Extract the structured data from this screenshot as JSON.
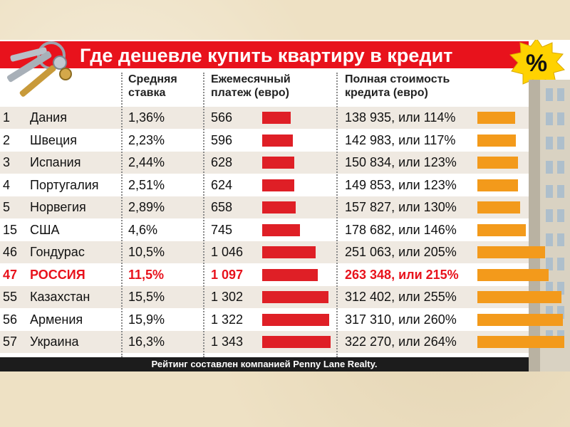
{
  "title": "Где дешевле купить квартиру в кредит",
  "badge": "%",
  "footer": "Рейтинг составлен компанией Penny Lane Realty.",
  "colors": {
    "title_bar": "#e8121c",
    "payment_bar": "#df1f26",
    "total_bar": "#f39a1b",
    "highlight_text": "#e8121c",
    "badge": "#ffd200"
  },
  "chart_data": {
    "type": "table",
    "columns": [
      "Средняя\nставка",
      "Ежемесячный\nплатеж (евро)",
      "Полная стоимость\nкредита (евро)"
    ],
    "highlight_row": 7,
    "rows": [
      {
        "rank": "1",
        "country": "Дания",
        "rate": "1,36%",
        "payment": "566",
        "payment_value": 566,
        "total": "138 935, или 114%",
        "total_value": 138935,
        "total_pct": 114
      },
      {
        "rank": "2",
        "country": "Швеция",
        "rate": "2,23%",
        "payment": "596",
        "payment_value": 596,
        "total": "142 983, или 117%",
        "total_value": 142983,
        "total_pct": 117
      },
      {
        "rank": "3",
        "country": "Испания",
        "rate": "2,44%",
        "payment": "628",
        "payment_value": 628,
        "total": "150 834, или 123%",
        "total_value": 150834,
        "total_pct": 123
      },
      {
        "rank": "4",
        "country": "Португалия",
        "rate": "2,51%",
        "payment": "624",
        "payment_value": 624,
        "total": "149 853, или 123%",
        "total_value": 149853,
        "total_pct": 123
      },
      {
        "rank": "5",
        "country": "Норвегия",
        "rate": "2,89%",
        "payment": "658",
        "payment_value": 658,
        "total": "157 827, или 130%",
        "total_value": 157827,
        "total_pct": 130
      },
      {
        "rank": "15",
        "country": "США",
        "rate": "4,6%",
        "payment": "745",
        "payment_value": 745,
        "total": "178 682, или 146%",
        "total_value": 178682,
        "total_pct": 146
      },
      {
        "rank": "46",
        "country": "Гондурас",
        "rate": "10,5%",
        "payment": "1 046",
        "payment_value": 1046,
        "total": "251 063, или 205%",
        "total_value": 251063,
        "total_pct": 205
      },
      {
        "rank": "47",
        "country": "РОССИЯ",
        "rate": "11,5%",
        "payment": "1 097",
        "payment_value": 1097,
        "total": "263 348, или 215%",
        "total_value": 263348,
        "total_pct": 215
      },
      {
        "rank": "55",
        "country": "Казахстан",
        "rate": "15,5%",
        "payment": "1 302",
        "payment_value": 1302,
        "total": "312 402, или 255%",
        "total_value": 312402,
        "total_pct": 255
      },
      {
        "rank": "56",
        "country": "Армения",
        "rate": "15,9%",
        "payment": "1 322",
        "payment_value": 1322,
        "total": "317 310, или 260%",
        "total_value": 317310,
        "total_pct": 260
      },
      {
        "rank": "57",
        "country": "Украина",
        "rate": "16,3%",
        "payment": "1 343",
        "payment_value": 1343,
        "total": "322 270, или 264%",
        "total_value": 322270,
        "total_pct": 264
      }
    ]
  }
}
